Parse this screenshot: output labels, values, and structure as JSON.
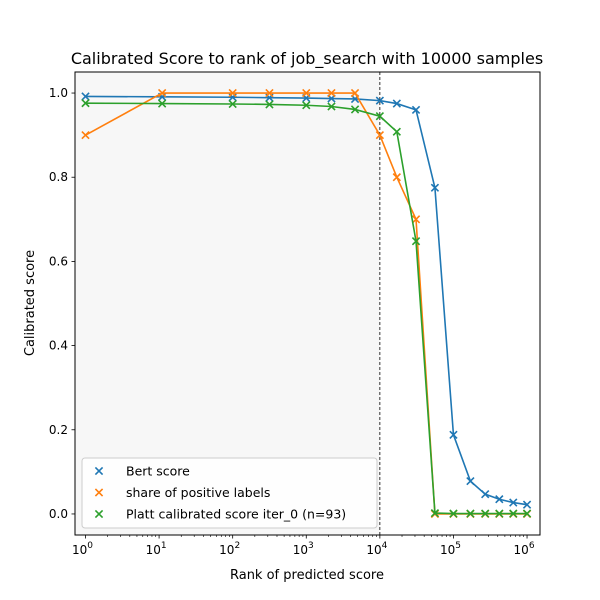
{
  "chart_data": {
    "type": "line",
    "title": "Calibrated Score to rank of job_search with 10000 samples",
    "xlabel": "Rank of predicted score",
    "ylabel": "Calibrated score",
    "xscale": "log",
    "xlim": [
      0.72,
      1500000
    ],
    "ylim": [
      -0.05,
      1.05
    ],
    "x_ticks": [
      {
        "value": 1,
        "base": "10",
        "exp": "0"
      },
      {
        "value": 10,
        "base": "10",
        "exp": "1"
      },
      {
        "value": 100,
        "base": "10",
        "exp": "2"
      },
      {
        "value": 1000,
        "base": "10",
        "exp": "3"
      },
      {
        "value": 10000,
        "base": "10",
        "exp": "4"
      },
      {
        "value": 100000,
        "base": "10",
        "exp": "5"
      },
      {
        "value": 1000000,
        "base": "10",
        "exp": "6"
      }
    ],
    "y_ticks": [
      "0.0",
      "0.2",
      "0.4",
      "0.6",
      "0.8",
      "1.0"
    ],
    "grid": false,
    "shaded_region": {
      "x_start": 0.72,
      "x_end": 10000,
      "color": "#f7f7f7"
    },
    "vertical_line": {
      "x": 10000,
      "style": "dashed",
      "color": "#000000"
    },
    "legend_position": "lower-left",
    "series": [
      {
        "name": "Bert score",
        "color": "#1f77b4",
        "marker": "x",
        "x": [
          1,
          11,
          100,
          316,
          1000,
          2200,
          4600,
          10000,
          17000,
          31000,
          56000,
          100000,
          170000,
          270000,
          420000,
          650000,
          1000000
        ],
        "y": [
          0.992,
          0.991,
          0.99,
          0.989,
          0.988,
          0.987,
          0.986,
          0.982,
          0.975,
          0.96,
          0.775,
          0.188,
          0.078,
          0.047,
          0.035,
          0.027,
          0.022
        ]
      },
      {
        "name": "share of positive labels",
        "color": "#ff7f0e",
        "marker": "x",
        "x": [
          1,
          11,
          100,
          316,
          1000,
          2200,
          4600,
          10000,
          17000,
          31000,
          56000,
          100000,
          170000,
          270000,
          420000,
          650000,
          1000000
        ],
        "y": [
          0.9,
          1.0,
          1.0,
          1.0,
          1.0,
          1.0,
          1.0,
          0.9,
          0.8,
          0.7,
          0.0,
          0.0,
          0.0,
          0.0,
          0.0,
          0.0,
          0.0
        ]
      },
      {
        "name": "Platt calibrated score iter_0 (n=93)",
        "color": "#2ca02c",
        "marker": "x",
        "x": [
          1,
          11,
          100,
          316,
          1000,
          2200,
          4600,
          10000,
          17000,
          31000,
          56000,
          100000,
          170000,
          270000,
          420000,
          650000,
          1000000
        ],
        "y": [
          0.976,
          0.975,
          0.974,
          0.973,
          0.971,
          0.968,
          0.961,
          0.945,
          0.908,
          0.648,
          0.002,
          0.001,
          0.001,
          0.001,
          0.001,
          0.001,
          0.001
        ]
      }
    ]
  }
}
